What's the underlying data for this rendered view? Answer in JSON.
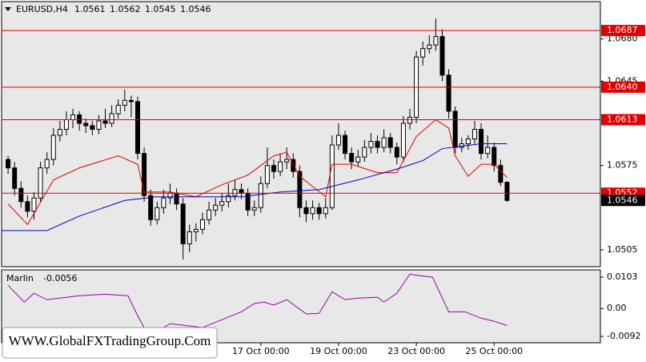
{
  "chart_data": {
    "type": "candlestick",
    "symbol": "EURUSD,H4",
    "quote": [
      1.0561,
      1.0562,
      1.0545,
      1.0546
    ],
    "xlim": [
      -1,
      91.4
    ],
    "ylim": [
      1.0491,
      1.0711
    ],
    "yticks": [
      {
        "value": 1.068,
        "label": "1.0680"
      },
      1.0645,
      1.0575,
      1.0505
    ],
    "xticks": [
      {
        "value": 39,
        "label": "17 Oct 00:00"
      },
      {
        "value": 51,
        "label": "19 Oct 00:00"
      },
      {
        "value": 63,
        "label": "23 Oct 00:00"
      },
      {
        "value": 75,
        "label": "25 Oct 00:00"
      }
    ],
    "levels": [
      1.0687,
      {
        "value": 1.064,
        "label": "1.0640"
      },
      1.0613,
      1.0552
    ],
    "level_color": "#e00000",
    "current_price": 1.0546,
    "up_color": "#ffffff",
    "down_color": "#000000",
    "candles": [
      [
        1.058,
        1.0583,
        1.0568,
        1.0573
      ],
      [
        1.0573,
        1.0578,
        1.055,
        1.0556
      ],
      [
        1.0556,
        1.0562,
        1.054,
        1.0545
      ],
      [
        1.0545,
        1.055,
        1.0532,
        1.0537
      ],
      [
        1.0537,
        1.0553,
        1.053,
        1.0548
      ],
      [
        1.0548,
        1.0578,
        1.0545,
        1.0573
      ],
      [
        1.0573,
        1.0586,
        1.0568,
        1.058
      ],
      [
        1.058,
        1.0606,
        1.0575,
        1.06
      ],
      [
        1.06,
        1.0612,
        1.0595,
        1.0605
      ],
      [
        1.0605,
        1.062,
        1.06,
        1.0613
      ],
      [
        1.0613,
        1.0622,
        1.0606,
        1.0617
      ],
      [
        1.0617,
        1.062,
        1.0604,
        1.061
      ],
      [
        1.061,
        1.0614,
        1.0602,
        1.0608
      ],
      [
        1.0608,
        1.0612,
        1.06,
        1.0605
      ],
      [
        1.0605,
        1.0617,
        1.0601,
        1.0612
      ],
      [
        1.0612,
        1.0622,
        1.0606,
        1.061
      ],
      [
        1.061,
        1.0625,
        1.0607,
        1.0618
      ],
      [
        1.0618,
        1.063,
        1.0614,
        1.0625
      ],
      [
        1.0625,
        1.0638,
        1.062,
        1.0629
      ],
      [
        1.0629,
        1.0633,
        1.0615,
        1.0628
      ],
      [
        1.0628,
        1.0632,
        1.058,
        1.0585
      ],
      [
        1.0585,
        1.059,
        1.0545,
        1.055
      ],
      [
        1.055,
        1.0555,
        1.0525,
        1.053
      ],
      [
        1.053,
        1.0545,
        1.0526,
        1.054
      ],
      [
        1.054,
        1.0555,
        1.0535,
        1.0548
      ],
      [
        1.0548,
        1.056,
        1.0543,
        1.0552
      ],
      [
        1.0552,
        1.0556,
        1.0538,
        1.0543
      ],
      [
        1.0543,
        1.0548,
        1.0497,
        1.051
      ],
      [
        1.051,
        1.0526,
        1.0503,
        1.052
      ],
      [
        1.052,
        1.0527,
        1.0512,
        1.0522
      ],
      [
        1.0522,
        1.0536,
        1.0518,
        1.053
      ],
      [
        1.053,
        1.0545,
        1.0526,
        1.0538
      ],
      [
        1.0538,
        1.0548,
        1.0533,
        1.0542
      ],
      [
        1.0542,
        1.0552,
        1.0537,
        1.0545
      ],
      [
        1.0545,
        1.056,
        1.054,
        1.055
      ],
      [
        1.055,
        1.0563,
        1.0546,
        1.0555
      ],
      [
        1.0555,
        1.056,
        1.0547,
        1.0552
      ],
      [
        1.0552,
        1.0556,
        1.0533,
        1.0538
      ],
      [
        1.0538,
        1.0546,
        1.0533,
        1.054
      ],
      [
        1.054,
        1.0566,
        1.0536,
        1.056
      ],
      [
        1.056,
        1.059,
        1.0556,
        1.0575
      ],
      [
        1.0575,
        1.058,
        1.0564,
        1.057
      ],
      [
        1.057,
        1.0585,
        1.0566,
        1.0578
      ],
      [
        1.0578,
        1.059,
        1.0572,
        1.058
      ],
      [
        1.058,
        1.0585,
        1.0565,
        1.057
      ],
      [
        1.057,
        1.0575,
        1.0532,
        1.054
      ],
      [
        1.054,
        1.0546,
        1.0528,
        1.0535
      ],
      [
        1.0535,
        1.0546,
        1.053,
        1.054
      ],
      [
        1.054,
        1.0544,
        1.053,
        1.0535
      ],
      [
        1.0535,
        1.0548,
        1.0531,
        1.054
      ],
      [
        1.054,
        1.06,
        1.0538,
        1.0592
      ],
      [
        1.0592,
        1.061,
        1.0588,
        1.06
      ],
      [
        1.06,
        1.0604,
        1.058,
        1.0585
      ],
      [
        1.0585,
        1.059,
        1.0572,
        1.0578
      ],
      [
        1.0578,
        1.0588,
        1.0574,
        1.0582
      ],
      [
        1.0582,
        1.0596,
        1.0578,
        1.059
      ],
      [
        1.059,
        1.0602,
        1.0585,
        1.0595
      ],
      [
        1.0595,
        1.06,
        1.0585,
        1.059
      ],
      [
        1.059,
        1.0605,
        1.0586,
        1.0598
      ],
      [
        1.0598,
        1.0602,
        1.0585,
        1.059
      ],
      [
        1.059,
        1.0594,
        1.0576,
        1.0582
      ],
      [
        1.0582,
        1.0616,
        1.0578,
        1.061
      ],
      [
        1.061,
        1.0622,
        1.0605,
        1.0615
      ],
      [
        1.0615,
        1.067,
        1.061,
        1.0665
      ],
      [
        1.0665,
        1.0678,
        1.0658,
        1.0672
      ],
      [
        1.0672,
        1.0683,
        1.0668,
        1.0675
      ],
      [
        1.0675,
        1.0697,
        1.067,
        1.0682
      ],
      [
        1.0682,
        1.0688,
        1.0645,
        1.065
      ],
      [
        1.065,
        1.0655,
        1.0614,
        1.062
      ],
      [
        1.062,
        1.0624,
        1.0585,
        1.059
      ],
      [
        1.059,
        1.0598,
        1.0586,
        1.0593
      ],
      [
        1.0593,
        1.06,
        1.0588,
        1.0597
      ],
      [
        1.0597,
        1.0612,
        1.0593,
        1.0605
      ],
      [
        1.0605,
        1.061,
        1.058,
        1.0585
      ],
      [
        1.0585,
        1.06,
        1.0581,
        1.059
      ],
      [
        1.059,
        1.0594,
        1.057,
        1.0575
      ],
      [
        1.0575,
        1.058,
        1.0558,
        1.0561
      ],
      [
        1.0561,
        1.0562,
        1.0545,
        1.0546
      ]
    ],
    "lines": [
      {
        "color": "#e00000",
        "x": [
          0,
          3,
          7,
          11,
          17,
          20,
          21,
          25,
          29,
          33,
          37,
          41,
          43,
          45,
          49,
          50,
          53,
          57,
          60,
          63,
          66,
          68,
          69,
          71,
          73,
          75,
          77
        ],
        "values": [
          1.0543,
          1.0526,
          1.0563,
          1.0573,
          1.0583,
          1.0576,
          1.0553,
          1.0553,
          1.0549,
          1.0559,
          1.0567,
          1.0583,
          1.0586,
          1.0566,
          1.0549,
          1.0576,
          1.0576,
          1.0569,
          1.0569,
          1.0599,
          1.0613,
          1.0606,
          1.0583,
          1.0566,
          1.0576,
          1.0576,
          1.0565
        ]
      },
      {
        "color": "#0000c0",
        "x": [
          -1,
          6,
          11,
          18,
          23,
          36,
          42,
          48,
          54,
          60,
          64,
          67,
          70,
          73,
          77
        ],
        "values": [
          1.0521,
          1.0521,
          1.0533,
          1.0546,
          1.0549,
          1.0549,
          1.0553,
          1.0555,
          1.0563,
          1.0572,
          1.0579,
          1.0589,
          1.0591,
          1.0593,
          1.0593
        ]
      }
    ],
    "indicator": {
      "name": "Marlin",
      "value": -0.0056,
      "color": "#9900aa",
      "ylim": [
        -0.0113,
        0.0127
      ],
      "yticks": [
        0.0103,
        {
          "value": 0,
          "label": "0.00"
        },
        -0.0092
      ],
      "x": [
        0,
        2.5,
        4,
        6,
        11,
        15,
        18.5,
        20,
        21,
        24,
        25,
        30,
        33,
        36,
        38,
        39.5,
        41,
        43,
        46,
        48,
        50,
        52,
        54,
        57,
        58,
        60,
        62,
        63.5,
        65.5,
        68,
        70.5,
        73,
        75,
        77
      ],
      "values": [
        0.0076,
        0.0021,
        0.005,
        0.0029,
        0.0042,
        0.0047,
        0.0042,
        -0.0024,
        -0.0063,
        -0.0063,
        -0.005,
        -0.0063,
        -0.0037,
        -0.0011,
        0.0016,
        0.0021,
        0.0011,
        0.0029,
        -0.0018,
        -0.0016,
        0.0055,
        0.0029,
        0.0034,
        0.0037,
        0.0021,
        0.005,
        0.0113,
        0.0108,
        0.0103,
        -0.0011,
        -0.0011,
        -0.0032,
        -0.0042,
        -0.0056
      ]
    },
    "watermark": "WWW.GlobalFXTradingGroup.Com"
  }
}
